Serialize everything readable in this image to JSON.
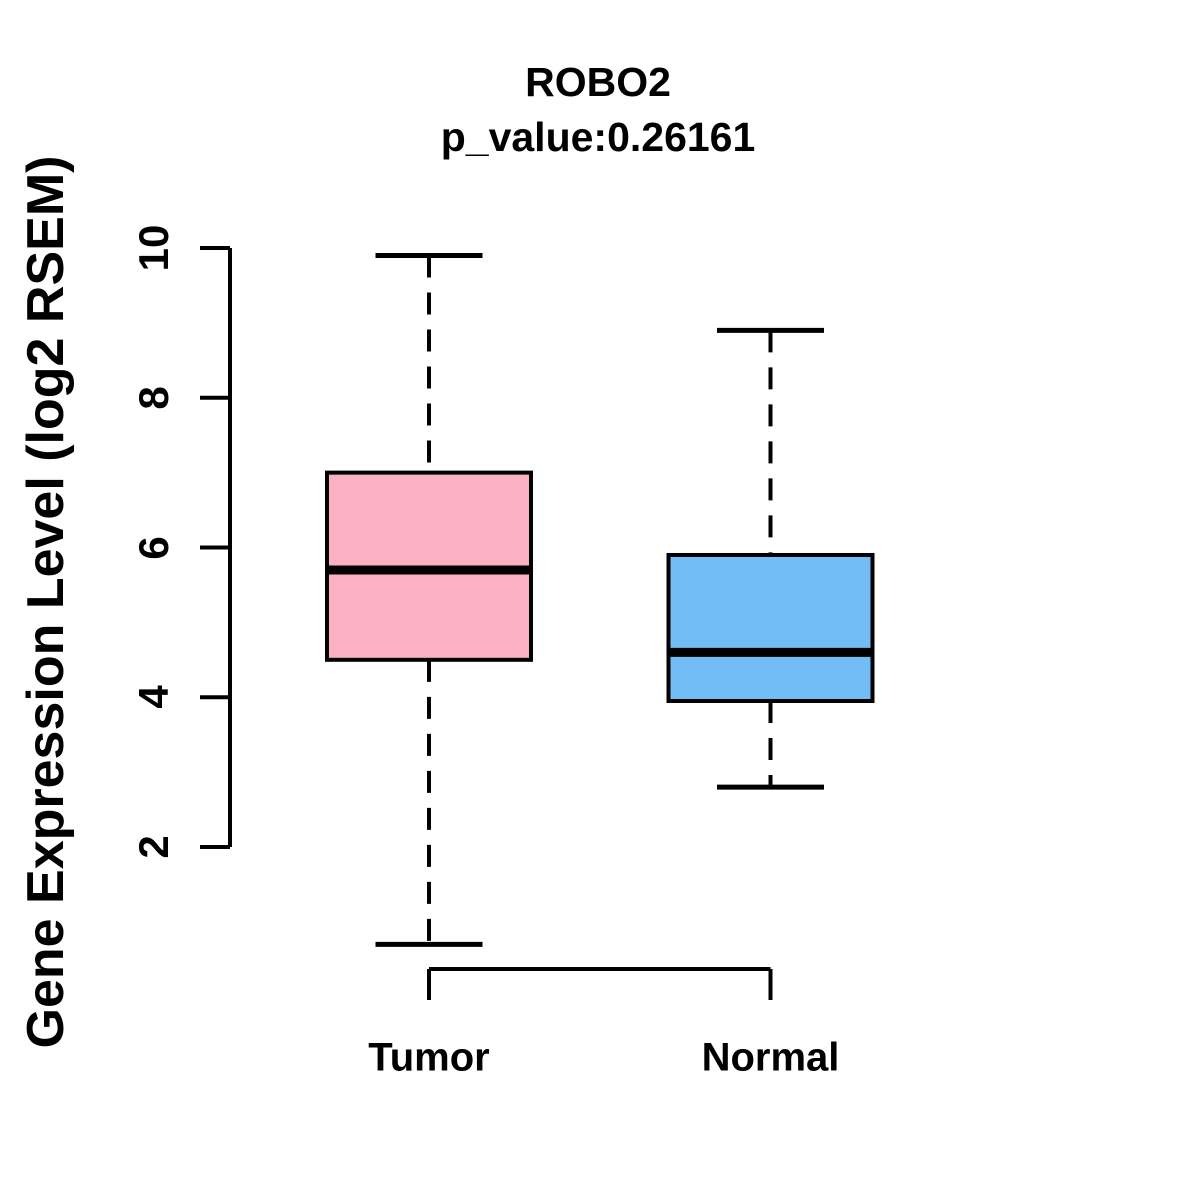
{
  "chart_data": {
    "type": "box",
    "title": "ROBO2",
    "subtitle": "p_value:0.26161",
    "ylabel": "Gene Expression Level (log2 RSEM)",
    "xlabel": "",
    "categories": [
      "Tumor",
      "Normal"
    ],
    "yticks": [
      10,
      8,
      6,
      4,
      2
    ],
    "axis_range": [
      2,
      10
    ],
    "grid": "off",
    "legend": "none",
    "colors": {
      "tumor_fill": "#FCB1C3",
      "normal_fill": "#72BDF6",
      "stroke": "#000000",
      "background": "#FFFFFF"
    },
    "series": [
      {
        "name": "Tumor",
        "fill": "#FCB1C3",
        "whisker_low": 0.7,
        "q1": 4.5,
        "median": 5.7,
        "q3": 7.0,
        "whisker_high": 9.9
      },
      {
        "name": "Normal",
        "fill": "#72BDF6",
        "whisker_low": 2.8,
        "q1": 3.95,
        "median": 4.6,
        "q3": 5.9,
        "whisker_high": 8.9
      }
    ]
  }
}
